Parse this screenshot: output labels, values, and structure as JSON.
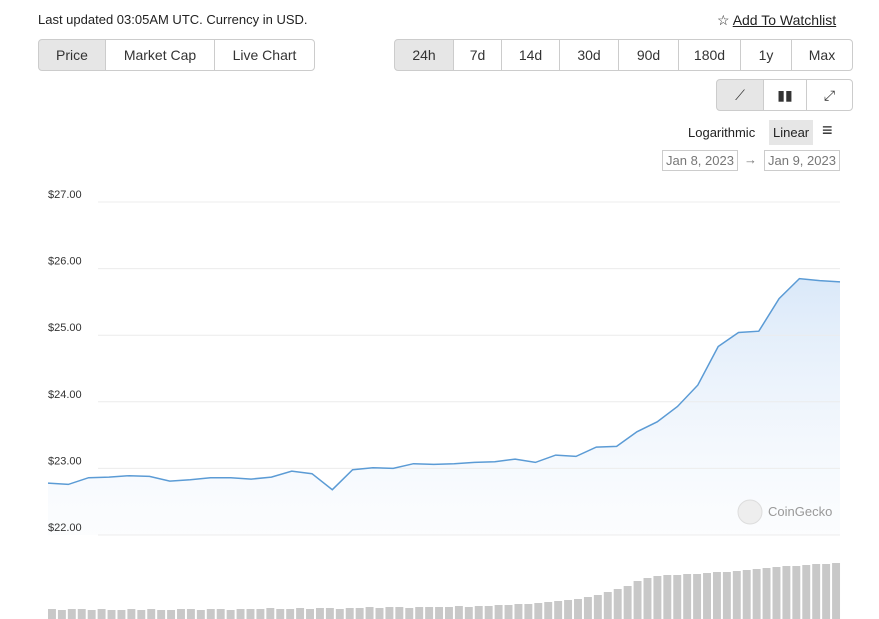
{
  "header": {
    "status": "Last updated 03:05AM UTC. Currency in USD.",
    "watchlist": "Add To Watchlist"
  },
  "tabs": [
    "Price",
    "Market Cap",
    "Live Chart"
  ],
  "ranges": [
    "24h",
    "7d",
    "14d",
    "30d",
    "90d",
    "180d",
    "1y",
    "Max"
  ],
  "scale_options": [
    "Logarithmic",
    "Linear"
  ],
  "date_from": "Jan 8, 2023",
  "date_to": "Jan 9, 2023",
  "watermark": "CoinGecko",
  "chart_data": {
    "type": "line",
    "series": [
      {
        "color": "#5b9bd5",
        "values": [
          22.78,
          22.76,
          22.86,
          22.87,
          22.89,
          22.88,
          22.81,
          22.83,
          22.86,
          22.86,
          22.84,
          22.87,
          22.96,
          22.92,
          22.68,
          22.98,
          23.01,
          23.0,
          23.07,
          23.06,
          23.07,
          23.09,
          23.1,
          23.14,
          23.09,
          23.2,
          23.18,
          23.32,
          23.33,
          23.55,
          23.7,
          23.93,
          24.25,
          24.83,
          25.04,
          25.06,
          25.55,
          25.85,
          25.82,
          25.8
        ]
      },
      {
        "type": "bar",
        "axis": "y2",
        "color": "#c8c8c8",
        "values": [
          10,
          9,
          10,
          10,
          9,
          10,
          9,
          9,
          10,
          9,
          10,
          9,
          9,
          10,
          10,
          9,
          10,
          10,
          9,
          10,
          10,
          10,
          11,
          10,
          10,
          11,
          10,
          11,
          11,
          10,
          11,
          11,
          12,
          11,
          12,
          12,
          11,
          12,
          12,
          12,
          12,
          13,
          12,
          13,
          13,
          14,
          14,
          15,
          15,
          16,
          17,
          18,
          19,
          20,
          22,
          24,
          27,
          30,
          33,
          38,
          41,
          43,
          44,
          44,
          45,
          45,
          46,
          47,
          47,
          48,
          49,
          50,
          51,
          52,
          53,
          53,
          54,
          55,
          55,
          56
        ]
      }
    ],
    "ylim": [
      22,
      27
    ],
    "yticks": [
      {
        "value": 22,
        "label": "$22.00"
      },
      {
        "value": 23,
        "label": "$23.00"
      },
      {
        "value": 24,
        "label": "$24.00"
      },
      {
        "value": 25,
        "label": "$25.00"
      },
      {
        "value": 26,
        "label": "$26.00"
      },
      {
        "value": 27,
        "label": "$27.00"
      }
    ],
    "y2lim": [
      0,
      60
    ],
    "grid": true
  }
}
